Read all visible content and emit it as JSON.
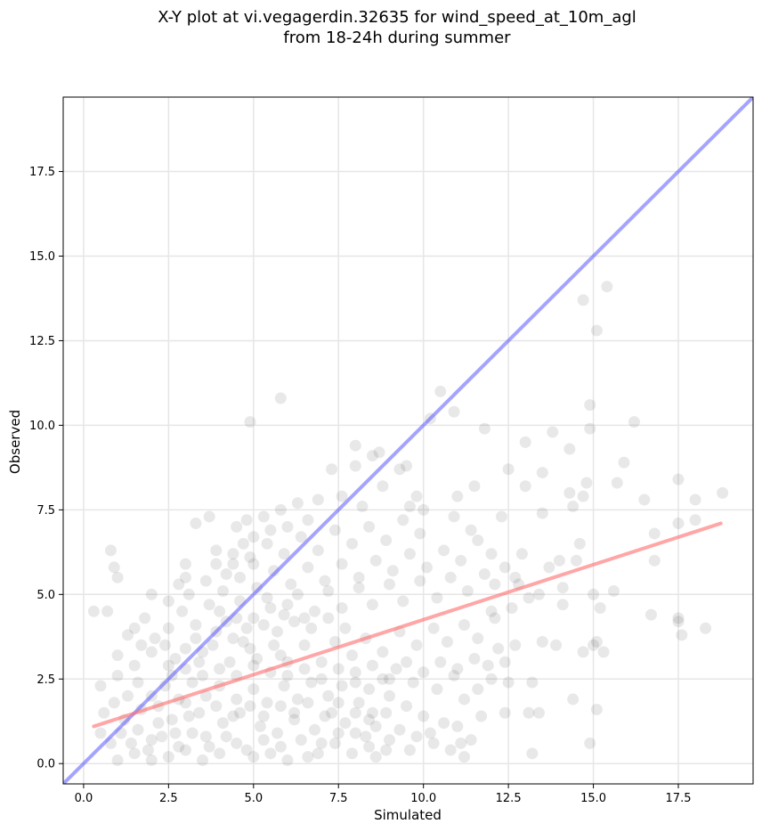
{
  "chart_data": {
    "type": "scatter",
    "title_lines": [
      "X-Y plot at vi.vegagerdin.32635 for wind_speed_at_10m_agl",
      "from 18-24h during summer"
    ],
    "xlabel": "Simulated",
    "ylabel": "Observed",
    "xlim": [
      -0.6,
      19.7
    ],
    "ylim": [
      -0.6,
      19.7
    ],
    "xticks": [
      0.0,
      2.5,
      5.0,
      7.5,
      10.0,
      12.5,
      15.0,
      17.5
    ],
    "xtick_labels": [
      "0.0",
      "2.5",
      "5.0",
      "7.5",
      "10.0",
      "12.5",
      "15.0",
      "17.5"
    ],
    "yticks": [
      0.0,
      2.5,
      5.0,
      7.5,
      10.0,
      12.5,
      15.0,
      17.5
    ],
    "ytick_labels": [
      "0.0",
      "2.5",
      "5.0",
      "7.5",
      "10.0",
      "12.5",
      "15.0",
      "17.5"
    ],
    "grid": true,
    "colors": {
      "points": "#000000",
      "identity_line": "#4a4aff",
      "fit_line": "#ff6b6b",
      "grid": "#e6e6e6"
    },
    "points_opacity": 0.09,
    "identity_line": {
      "x": [
        -0.6,
        19.7
      ],
      "y": [
        -0.6,
        19.7
      ]
    },
    "fit_line": {
      "x": [
        0.3,
        18.75
      ],
      "y": [
        1.1,
        7.1
      ]
    },
    "points": [
      [
        0.3,
        4.5
      ],
      [
        0.7,
        4.5
      ],
      [
        0.8,
        6.3
      ],
      [
        0.9,
        5.8
      ],
      [
        1.0,
        5.5
      ],
      [
        0.5,
        2.3
      ],
      [
        1.0,
        3.2
      ],
      [
        1.3,
        3.8
      ],
      [
        1.5,
        4.0
      ],
      [
        1.8,
        4.3
      ],
      [
        2.0,
        5.0
      ],
      [
        2.5,
        4.8
      ],
      [
        2.8,
        5.3
      ],
      [
        3.0,
        5.9
      ],
      [
        3.0,
        5.5
      ],
      [
        3.3,
        7.1
      ],
      [
        3.7,
        7.3
      ],
      [
        3.9,
        5.9
      ],
      [
        4.2,
        5.6
      ],
      [
        4.4,
        6.2
      ],
      [
        4.5,
        7.0
      ],
      [
        4.8,
        7.2
      ],
      [
        5.0,
        6.7
      ],
      [
        4.7,
        6.5
      ],
      [
        5.0,
        5.9
      ],
      [
        4.9,
        10.1
      ],
      [
        5.8,
        10.8
      ],
      [
        5.3,
        7.3
      ],
      [
        5.5,
        6.9
      ],
      [
        5.8,
        7.5
      ],
      [
        6.0,
        7.0
      ],
      [
        6.3,
        7.7
      ],
      [
        6.6,
        7.2
      ],
      [
        6.9,
        7.8
      ],
      [
        7.3,
        8.7
      ],
      [
        7.6,
        7.9
      ],
      [
        8.0,
        8.8
      ],
      [
        8.0,
        9.4
      ],
      [
        8.5,
        9.1
      ],
      [
        8.7,
        9.2
      ],
      [
        9.3,
        8.7
      ],
      [
        9.5,
        8.8
      ],
      [
        9.8,
        7.9
      ],
      [
        10.0,
        7.5
      ],
      [
        10.2,
        10.2
      ],
      [
        10.5,
        11.0
      ],
      [
        10.9,
        10.4
      ],
      [
        11.5,
        8.2
      ],
      [
        11.0,
        7.9
      ],
      [
        11.8,
        9.9
      ],
      [
        12.5,
        8.7
      ],
      [
        12.3,
        7.3
      ],
      [
        13.0,
        9.5
      ],
      [
        13.5,
        7.4
      ],
      [
        13.0,
        8.2
      ],
      [
        13.5,
        8.6
      ],
      [
        13.8,
        9.8
      ],
      [
        14.3,
        9.3
      ],
      [
        14.8,
        8.3
      ],
      [
        14.7,
        13.7
      ],
      [
        15.4,
        14.1
      ],
      [
        15.1,
        12.8
      ],
      [
        14.9,
        10.6
      ],
      [
        14.9,
        9.9
      ],
      [
        16.2,
        10.1
      ],
      [
        15.9,
        8.9
      ],
      [
        15.7,
        8.3
      ],
      [
        16.5,
        7.8
      ],
      [
        16.8,
        6.8
      ],
      [
        16.8,
        6.0
      ],
      [
        17.5,
        8.4
      ],
      [
        17.5,
        7.1
      ],
      [
        18.0,
        7.8
      ],
      [
        18.0,
        7.2
      ],
      [
        18.8,
        8.0
      ],
      [
        17.5,
        4.3
      ],
      [
        17.6,
        3.8
      ],
      [
        17.5,
        4.2
      ],
      [
        16.7,
        4.4
      ],
      [
        18.3,
        4.0
      ],
      [
        15.0,
        5.0
      ],
      [
        15.2,
        4.6
      ],
      [
        15.6,
        5.1
      ],
      [
        15.0,
        3.5
      ],
      [
        14.7,
        3.3
      ],
      [
        15.3,
        3.3
      ],
      [
        15.1,
        3.6
      ],
      [
        14.4,
        1.9
      ],
      [
        14.9,
        0.6
      ],
      [
        15.1,
        1.6
      ],
      [
        13.2,
        0.3
      ],
      [
        13.1,
        1.5
      ],
      [
        13.4,
        1.5
      ],
      [
        13.2,
        2.4
      ],
      [
        12.5,
        2.4
      ],
      [
        12.7,
        3.5
      ],
      [
        13.5,
        3.6
      ],
      [
        13.9,
        3.5
      ],
      [
        14.1,
        4.7
      ],
      [
        13.7,
        5.8
      ],
      [
        14.0,
        6.0
      ],
      [
        14.5,
        6.0
      ],
      [
        14.1,
        5.2
      ],
      [
        14.4,
        7.6
      ],
      [
        14.3,
        8.0
      ],
      [
        14.7,
        7.9
      ],
      [
        14.6,
        6.5
      ],
      [
        12.9,
        6.2
      ],
      [
        12.7,
        5.5
      ],
      [
        12.1,
        5.3
      ],
      [
        12.0,
        4.5
      ],
      [
        12.4,
        3.0
      ],
      [
        12.0,
        2.5
      ],
      [
        12.4,
        1.5
      ],
      [
        11.7,
        1.4
      ],
      [
        11.4,
        0.7
      ],
      [
        11.1,
        0.6
      ],
      [
        10.8,
        0.4
      ],
      [
        11.2,
        0.2
      ],
      [
        10.3,
        0.6
      ],
      [
        9.8,
        0.8
      ],
      [
        9.3,
        1.0
      ],
      [
        8.6,
        1.1
      ],
      [
        8.3,
        0.8
      ],
      [
        8.9,
        0.4
      ],
      [
        8.6,
        0.2
      ],
      [
        7.9,
        0.3
      ],
      [
        7.5,
        0.9
      ],
      [
        7.0,
        0.6
      ],
      [
        6.6,
        0.2
      ],
      [
        6.0,
        0.1
      ],
      [
        5.5,
        0.3
      ],
      [
        5.0,
        0.2
      ],
      [
        4.5,
        0.6
      ],
      [
        4.0,
        0.3
      ],
      [
        3.5,
        0.1
      ],
      [
        3.0,
        0.4
      ],
      [
        2.5,
        0.2
      ],
      [
        2.0,
        0.1
      ],
      [
        1.5,
        0.3
      ],
      [
        1.0,
        0.1
      ],
      [
        0.8,
        0.6
      ],
      [
        0.5,
        0.9
      ],
      [
        1.2,
        1.3
      ],
      [
        1.6,
        1.0
      ],
      [
        2.0,
        0.7
      ],
      [
        2.2,
        1.2
      ],
      [
        2.7,
        0.9
      ],
      [
        3.1,
        1.4
      ],
      [
        3.6,
        0.8
      ],
      [
        4.1,
        1.2
      ],
      [
        4.6,
        1.5
      ],
      [
        5.2,
        1.1
      ],
      [
        5.7,
        0.9
      ],
      [
        6.2,
        1.3
      ],
      [
        6.8,
        1.0
      ],
      [
        7.3,
        1.5
      ],
      [
        7.7,
        1.2
      ],
      [
        8.1,
        1.8
      ],
      [
        8.5,
        1.5
      ],
      [
        9.0,
        2.0
      ],
      [
        9.5,
        1.7
      ],
      [
        10.0,
        1.4
      ],
      [
        10.4,
        2.2
      ],
      [
        10.9,
        2.6
      ],
      [
        11.2,
        1.9
      ],
      [
        11.6,
        2.2
      ],
      [
        11.9,
        2.9
      ],
      [
        9.7,
        2.4
      ],
      [
        9.2,
        2.8
      ],
      [
        8.8,
        2.5
      ],
      [
        8.4,
        2.2
      ],
      [
        8.0,
        2.7
      ],
      [
        7.6,
        2.3
      ],
      [
        7.2,
        2.0
      ],
      [
        6.7,
        2.4
      ],
      [
        6.3,
        1.9
      ],
      [
        5.9,
        2.3
      ],
      [
        5.4,
        1.8
      ],
      [
        5.0,
        2.2
      ],
      [
        4.5,
        1.9
      ],
      [
        4.0,
        2.3
      ],
      [
        3.6,
        2.0
      ],
      [
        3.2,
        2.4
      ],
      [
        2.8,
        1.9
      ],
      [
        2.4,
        2.3
      ],
      [
        2.0,
        2.0
      ],
      [
        1.6,
        2.4
      ],
      [
        1.3,
        2.0
      ],
      [
        1.0,
        2.6
      ],
      [
        1.5,
        2.9
      ],
      [
        2.0,
        3.3
      ],
      [
        2.5,
        2.9
      ],
      [
        3.0,
        3.4
      ],
      [
        3.4,
        3.0
      ],
      [
        3.8,
        3.5
      ],
      [
        4.3,
        3.0
      ],
      [
        4.7,
        3.6
      ],
      [
        5.1,
        3.1
      ],
      [
        5.6,
        3.5
      ],
      [
        6.0,
        3.0
      ],
      [
        6.5,
        3.5
      ],
      [
        7.0,
        3.0
      ],
      [
        7.4,
        3.6
      ],
      [
        7.9,
        3.2
      ],
      [
        8.3,
        3.7
      ],
      [
        8.8,
        3.3
      ],
      [
        9.3,
        3.9
      ],
      [
        9.8,
        3.5
      ],
      [
        10.3,
        4.0
      ],
      [
        10.7,
        3.6
      ],
      [
        11.2,
        4.1
      ],
      [
        11.6,
        3.7
      ],
      [
        12.1,
        4.3
      ],
      [
        12.6,
        4.6
      ],
      [
        13.1,
        4.9
      ],
      [
        12.8,
        5.3
      ],
      [
        13.4,
        5.0
      ],
      [
        11.8,
        5.6
      ],
      [
        11.3,
        5.1
      ],
      [
        10.8,
        5.5
      ],
      [
        10.4,
        4.9
      ],
      [
        9.9,
        5.4
      ],
      [
        9.4,
        4.8
      ],
      [
        9.0,
        5.3
      ],
      [
        8.5,
        4.7
      ],
      [
        8.1,
        5.2
      ],
      [
        7.6,
        4.6
      ],
      [
        7.2,
        5.1
      ],
      [
        6.8,
        4.5
      ],
      [
        6.3,
        5.0
      ],
      [
        5.9,
        4.4
      ],
      [
        5.4,
        4.9
      ],
      [
        5.0,
        4.3
      ],
      [
        4.6,
        4.8
      ],
      [
        4.2,
        4.2
      ],
      [
        3.7,
        4.7
      ],
      [
        3.3,
        4.1
      ],
      [
        2.9,
        4.5
      ],
      [
        2.5,
        4.0
      ],
      [
        2.1,
        3.7
      ],
      [
        1.7,
        3.5
      ],
      [
        3.1,
        5.0
      ],
      [
        3.6,
        5.4
      ],
      [
        4.1,
        5.1
      ],
      [
        4.6,
        5.5
      ],
      [
        5.1,
        5.2
      ],
      [
        5.6,
        5.7
      ],
      [
        6.1,
        5.3
      ],
      [
        6.6,
        5.8
      ],
      [
        7.1,
        5.4
      ],
      [
        7.6,
        5.9
      ],
      [
        8.1,
        5.5
      ],
      [
        8.6,
        6.0
      ],
      [
        9.1,
        5.7
      ],
      [
        9.6,
        6.2
      ],
      [
        10.1,
        5.8
      ],
      [
        10.6,
        6.3
      ],
      [
        11.1,
        6.0
      ],
      [
        11.6,
        6.6
      ],
      [
        12.0,
        6.2
      ],
      [
        12.4,
        5.8
      ],
      [
        11.4,
        6.9
      ],
      [
        10.9,
        7.3
      ],
      [
        9.9,
        6.8
      ],
      [
        9.4,
        7.2
      ],
      [
        8.9,
        6.6
      ],
      [
        8.4,
        7.0
      ],
      [
        7.9,
        6.5
      ],
      [
        7.4,
        6.9
      ],
      [
        6.9,
        6.3
      ],
      [
        6.4,
        6.7
      ],
      [
        5.9,
        6.2
      ],
      [
        5.4,
        6.5
      ],
      [
        4.9,
        6.1
      ],
      [
        4.4,
        5.9
      ],
      [
        3.9,
        6.3
      ],
      [
        8.2,
        7.6
      ],
      [
        8.8,
        8.2
      ],
      [
        9.6,
        7.6
      ],
      [
        1.4,
        0.6
      ],
      [
        1.9,
        0.4
      ],
      [
        2.3,
        0.8
      ],
      [
        2.8,
        0.5
      ],
      [
        3.2,
        0.9
      ],
      [
        3.7,
        0.5
      ],
      [
        4.2,
        0.8
      ],
      [
        4.8,
        0.4
      ],
      [
        5.3,
        0.7
      ],
      [
        5.8,
        0.5
      ],
      [
        6.4,
        0.7
      ],
      [
        6.9,
        0.3
      ],
      [
        7.4,
        0.6
      ],
      [
        8.0,
        0.9
      ],
      [
        8.4,
        0.5
      ],
      [
        9.0,
        0.7
      ],
      [
        9.6,
        0.4
      ],
      [
        10.2,
        0.9
      ],
      [
        10.6,
        1.2
      ],
      [
        11.0,
        1.1
      ],
      [
        0.6,
        1.5
      ],
      [
        0.9,
        1.8
      ],
      [
        1.1,
        0.9
      ],
      [
        1.7,
        1.6
      ],
      [
        2.2,
        1.7
      ],
      [
        2.6,
        1.3
      ],
      [
        3.0,
        1.8
      ],
      [
        3.4,
        1.5
      ],
      [
        3.9,
        1.7
      ],
      [
        4.4,
        1.4
      ],
      [
        4.9,
        1.7
      ],
      [
        5.3,
        1.4
      ],
      [
        5.8,
        1.7
      ],
      [
        6.2,
        1.5
      ],
      [
        6.6,
        1.8
      ],
      [
        7.1,
        1.4
      ],
      [
        7.5,
        1.8
      ],
      [
        8.0,
        1.5
      ],
      [
        8.4,
        1.3
      ],
      [
        8.9,
        1.5
      ],
      [
        2.4,
        3.5
      ],
      [
        2.7,
        3.1
      ],
      [
        3.3,
        3.7
      ],
      [
        3.9,
        3.9
      ],
      [
        4.4,
        3.7
      ],
      [
        4.8,
        4.0
      ],
      [
        5.3,
        4.1
      ],
      [
        5.7,
        3.9
      ],
      [
        6.2,
        4.2
      ],
      [
        6.7,
        4.0
      ],
      [
        7.2,
        4.3
      ],
      [
        7.7,
        4.0
      ],
      [
        4.0,
        4.5
      ],
      [
        4.5,
        4.3
      ],
      [
        5.5,
        4.6
      ],
      [
        6.0,
        4.7
      ],
      [
        6.5,
        4.3
      ],
      [
        3.5,
        3.3
      ],
      [
        4.9,
        3.4
      ],
      [
        5.8,
        3.2
      ],
      [
        2.6,
        2.6
      ],
      [
        3.0,
        2.8
      ],
      [
        3.5,
        2.6
      ],
      [
        4.0,
        2.8
      ],
      [
        4.5,
        2.6
      ],
      [
        5.0,
        2.9
      ],
      [
        5.5,
        2.7
      ],
      [
        6.0,
        2.6
      ],
      [
        6.5,
        2.8
      ],
      [
        7.0,
        2.5
      ],
      [
        7.5,
        2.8
      ],
      [
        8.0,
        2.4
      ],
      [
        8.5,
        2.9
      ],
      [
        9.0,
        2.5
      ],
      [
        9.5,
        3.0
      ],
      [
        10.0,
        2.7
      ],
      [
        10.5,
        3.0
      ],
      [
        11.0,
        2.8
      ],
      [
        11.5,
        3.1
      ],
      [
        12.2,
        3.4
      ]
    ]
  }
}
